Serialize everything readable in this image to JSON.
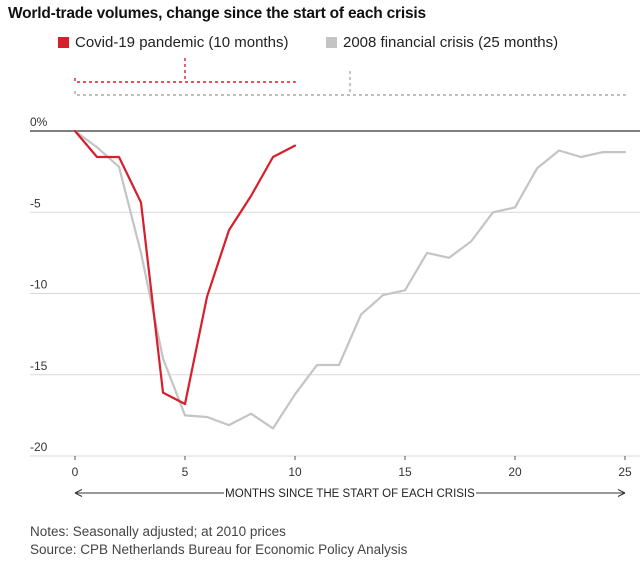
{
  "title": "World-trade volumes, change since the start of each crisis",
  "legend": [
    {
      "label": "Covid-19 pandemic (10 months)",
      "color": "#d71e2b"
    },
    {
      "label": "2008 financial crisis (25 months)",
      "color": "#c4c4c4"
    }
  ],
  "notes": {
    "line1": "Notes: Seasonally adjusted; at 2010 prices",
    "line2": "Source: CPB Netherlands Bureau for Economic Policy Analysis"
  },
  "chart_data": {
    "type": "line",
    "title": "World-trade volumes, change since the start of each crisis",
    "xlabel": "MONTHS SINCE THE START OF EACH CRISIS",
    "ylabel": "",
    "xlim": [
      0,
      25
    ],
    "ylim": [
      -20,
      0
    ],
    "x_ticks": [
      0,
      5,
      10,
      15,
      20,
      25
    ],
    "x_tick_labels": [
      "0",
      "5",
      "10",
      "15",
      "20",
      "25"
    ],
    "y_ticks": [
      0,
      -5,
      -10,
      -15,
      -20
    ],
    "y_tick_labels": [
      "0%",
      "-5",
      "-10",
      "-15",
      "-20"
    ],
    "grid": "horizontal",
    "legend_position": "top-left",
    "series": [
      {
        "name": "Covid-19 pandemic (10 months)",
        "color": "#d71e2b",
        "x": [
          0,
          1,
          2,
          3,
          4,
          5,
          6,
          7,
          8,
          9,
          10
        ],
        "y": [
          0,
          -1.6,
          -1.6,
          -4.4,
          -16.1,
          -16.8,
          -10.2,
          -6.1,
          -4.0,
          -1.6,
          -0.9
        ]
      },
      {
        "name": "2008 financial crisis (25 months)",
        "color": "#c4c4c4",
        "x": [
          0,
          1,
          2,
          3,
          4,
          5,
          6,
          7,
          8,
          9,
          10,
          11,
          12,
          13,
          14,
          15,
          16,
          17,
          18,
          19,
          20,
          21,
          22,
          23,
          24,
          25
        ],
        "y": [
          0,
          -1.0,
          -2.2,
          -7.5,
          -14.0,
          -17.5,
          -17.6,
          -18.1,
          -17.4,
          -18.3,
          -16.2,
          -14.4,
          -14.4,
          -11.3,
          -10.1,
          -9.8,
          -7.5,
          -7.8,
          -6.8,
          -5.0,
          -4.7,
          -2.3,
          -1.2,
          -1.6,
          -1.3,
          -1.3
        ]
      }
    ],
    "brackets": [
      {
        "series": "Covid-19 pandemic (10 months)",
        "from": 0,
        "to": 10
      },
      {
        "series": "2008 financial crisis (25 months)",
        "from": 0,
        "to": 25
      }
    ]
  }
}
